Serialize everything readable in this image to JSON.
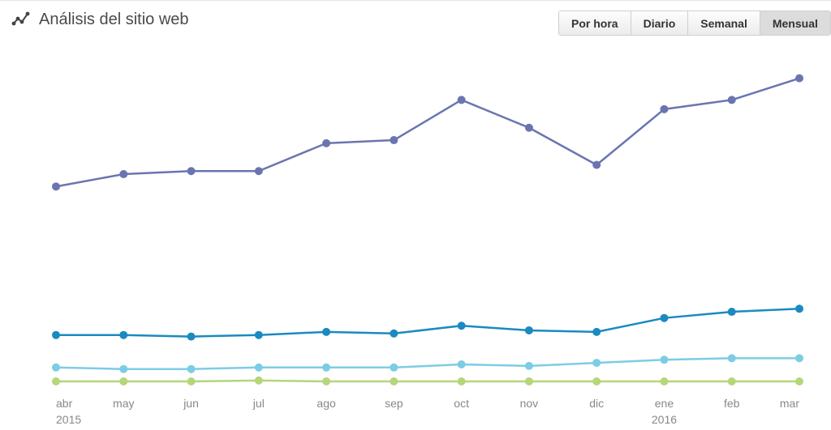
{
  "header": {
    "title": "Análisis del sitio web",
    "icon": "line-chart-icon",
    "buttons": [
      {
        "label": "Por hora",
        "active": false
      },
      {
        "label": "Diario",
        "active": false
      },
      {
        "label": "Semanal",
        "active": false
      },
      {
        "label": "Mensual",
        "active": true
      }
    ]
  },
  "chart_data": {
    "type": "line",
    "title": "Análisis del sitio web",
    "xlabel": "",
    "ylabel": "",
    "grid": false,
    "categories": [
      "abr",
      "may",
      "jun",
      "jul",
      "ago",
      "sep",
      "oct",
      "nov",
      "dic",
      "ene",
      "feb",
      "mar"
    ],
    "year_labels": [
      {
        "category": "abr",
        "label": "2015"
      },
      {
        "category": "ene",
        "label": "2016"
      }
    ],
    "ylim": [
      0,
      100
    ],
    "series": [
      {
        "color": "#6a75b0",
        "values": [
          63,
          67,
          68,
          68,
          77,
          78,
          91,
          82,
          70,
          88,
          91,
          98
        ]
      },
      {
        "color": "#1a8ac0",
        "values": [
          15,
          15,
          14.5,
          15,
          16,
          15.5,
          18,
          16.5,
          16,
          20.5,
          22.5,
          23.5
        ]
      },
      {
        "color": "#7ccde3",
        "values": [
          4.5,
          4,
          4,
          4.5,
          4.5,
          4.5,
          5.5,
          5,
          6,
          7,
          7.5,
          7.5
        ]
      },
      {
        "color": "#b5d67a",
        "values": [
          0,
          0,
          0,
          0.3,
          0,
          0,
          0,
          0,
          0,
          0,
          0,
          0
        ]
      }
    ]
  }
}
